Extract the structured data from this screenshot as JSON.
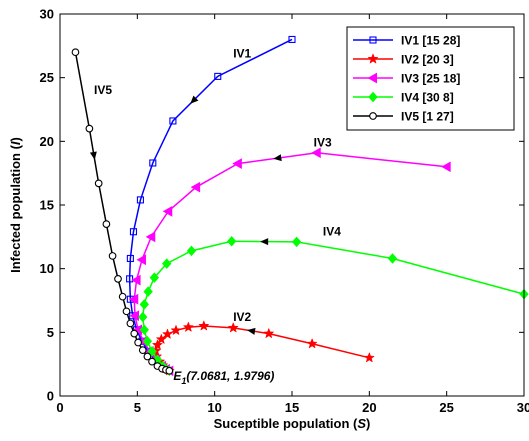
{
  "chart_data": {
    "type": "line",
    "title": "",
    "xlabel_main": "Suceptible population (",
    "xlabel_var": "S",
    "xlabel_end": ")",
    "ylabel_main": "Infected population (",
    "ylabel_var": "I",
    "ylabel_end": ")",
    "xlim": [
      0,
      30
    ],
    "ylim": [
      0,
      30
    ],
    "xticks": [
      0,
      5,
      10,
      15,
      20,
      25,
      30
    ],
    "yticks": [
      0,
      5,
      10,
      15,
      20,
      25,
      30
    ],
    "grid": false,
    "legend_position": "top-right",
    "equilibrium": {
      "label_symbol": "E",
      "label_sub": "1",
      "label_coords": "(7.0681, 1.9796)",
      "x": 7.0681,
      "y": 1.9796
    },
    "series": [
      {
        "name": "IV1 [15 28]",
        "curve_label": "IV1",
        "color": "#0000ff",
        "marker": "square",
        "points": [
          [
            15,
            28
          ],
          [
            10.2,
            25.1
          ],
          [
            7.3,
            21.6
          ],
          [
            6.0,
            18.3
          ],
          [
            5.2,
            15.4
          ],
          [
            4.75,
            12.9
          ],
          [
            4.55,
            10.8
          ],
          [
            4.5,
            9.2
          ],
          [
            4.55,
            7.6
          ],
          [
            4.7,
            6.3
          ],
          [
            4.95,
            5.2
          ],
          [
            5.3,
            4.3
          ],
          [
            5.7,
            3.5
          ],
          [
            6.15,
            2.85
          ],
          [
            6.6,
            2.35
          ],
          [
            6.85,
            2.1
          ],
          [
            7.0681,
            1.9796
          ]
        ]
      },
      {
        "name": "IV2 [20 3]",
        "color": "#ff0000",
        "curve_label": "IV2",
        "marker": "star",
        "points": [
          [
            20,
            3
          ],
          [
            16.3,
            4.1
          ],
          [
            13.5,
            4.9
          ],
          [
            11.2,
            5.35
          ],
          [
            9.3,
            5.5
          ],
          [
            8.3,
            5.4
          ],
          [
            7.5,
            5.15
          ],
          [
            6.95,
            4.85
          ],
          [
            6.55,
            4.45
          ],
          [
            6.3,
            4.0
          ],
          [
            6.2,
            3.55
          ],
          [
            6.25,
            3.1
          ],
          [
            6.45,
            2.7
          ],
          [
            6.65,
            2.4
          ],
          [
            6.85,
            2.15
          ],
          [
            7.0681,
            1.9796
          ]
        ]
      },
      {
        "name": "IV3 [25 18]",
        "color": "#ff00ff",
        "curve_label": "IV3",
        "marker": "left-triangle",
        "points": [
          [
            25,
            18
          ],
          [
            16.6,
            19.1
          ],
          [
            11.5,
            18.25
          ],
          [
            8.8,
            16.4
          ],
          [
            7.0,
            14.5
          ],
          [
            5.9,
            12.5
          ],
          [
            5.3,
            10.7
          ],
          [
            4.95,
            9.1
          ],
          [
            4.8,
            7.6
          ],
          [
            4.85,
            6.3
          ],
          [
            5.05,
            5.2
          ],
          [
            5.4,
            4.3
          ],
          [
            5.8,
            3.5
          ],
          [
            6.2,
            2.85
          ],
          [
            6.6,
            2.35
          ],
          [
            6.85,
            2.1
          ],
          [
            7.0681,
            1.9796
          ]
        ]
      },
      {
        "name": "IV4 [30 8]",
        "color": "#00ff00",
        "curve_label": "IV4",
        "marker": "diamond",
        "points": [
          [
            30,
            8
          ],
          [
            21.5,
            10.8
          ],
          [
            15.3,
            12.1
          ],
          [
            11.1,
            12.15
          ],
          [
            8.5,
            11.4
          ],
          [
            6.9,
            10.4
          ],
          [
            6.1,
            9.3
          ],
          [
            5.7,
            8.2
          ],
          [
            5.45,
            7.2
          ],
          [
            5.35,
            6.2
          ],
          [
            5.45,
            5.2
          ],
          [
            5.65,
            4.3
          ],
          [
            5.95,
            3.5
          ],
          [
            6.3,
            2.85
          ],
          [
            6.65,
            2.35
          ],
          [
            6.85,
            2.1
          ],
          [
            7.0681,
            1.9796
          ]
        ]
      },
      {
        "name": "IV5 [1 27]",
        "color": "#000000",
        "curve_label": "IV5",
        "marker": "circle",
        "points": [
          [
            1,
            27
          ],
          [
            1.9,
            21.0
          ],
          [
            2.5,
            16.7
          ],
          [
            3.0,
            13.5
          ],
          [
            3.4,
            11.0
          ],
          [
            3.75,
            9.2
          ],
          [
            4.05,
            7.8
          ],
          [
            4.3,
            6.65
          ],
          [
            4.55,
            5.7
          ],
          [
            4.8,
            4.9
          ],
          [
            5.05,
            4.2
          ],
          [
            5.35,
            3.6
          ],
          [
            5.65,
            3.1
          ],
          [
            5.95,
            2.7
          ],
          [
            6.3,
            2.35
          ],
          [
            6.6,
            2.15
          ],
          [
            6.85,
            2.05
          ],
          [
            7.0681,
            1.9796
          ]
        ]
      }
    ]
  }
}
